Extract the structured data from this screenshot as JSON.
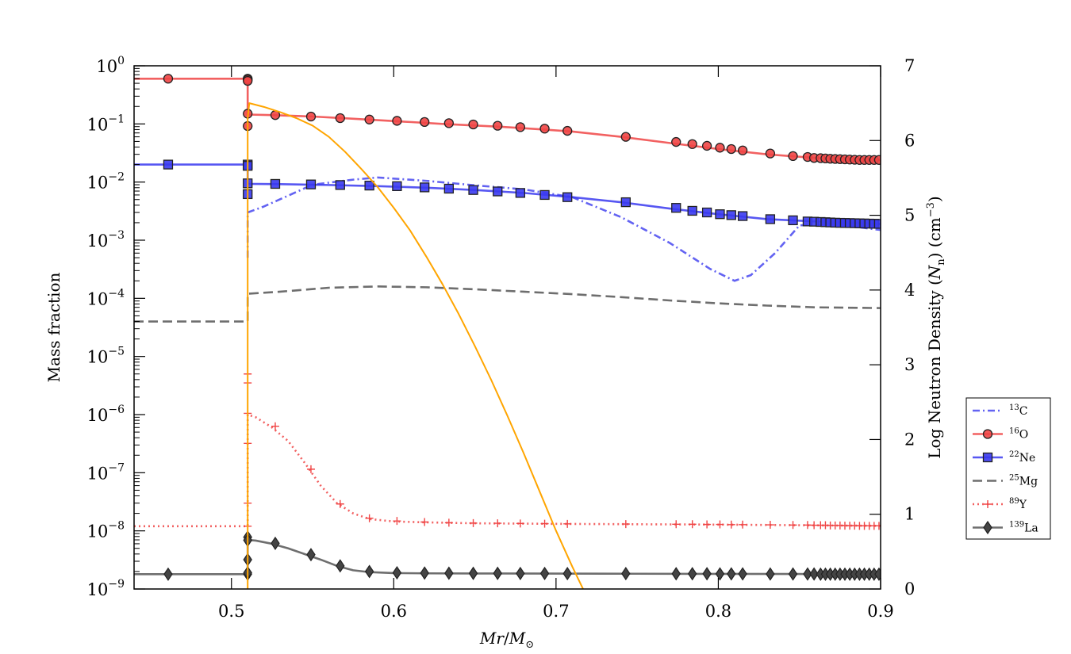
{
  "chart_data": {
    "type": "line",
    "x_axis": {
      "label_main": "Mr",
      "label_sep": "/",
      "label_sym": "M",
      "label_sub": "⊙",
      "range": [
        0.44,
        0.9
      ],
      "ticks": [
        0.5,
        0.6,
        0.7,
        0.8,
        0.9
      ],
      "tick_labels": [
        "0.5",
        "0.6",
        "0.7",
        "0.8",
        "0.9"
      ]
    },
    "y_left": {
      "label": "Mass fraction",
      "scale": "log",
      "range": [
        1e-09,
        1
      ],
      "ticks": [
        -9,
        -8,
        -7,
        -6,
        -5,
        -4,
        -3,
        -2,
        -1,
        0
      ],
      "tick_labels": [
        {
          "base": "10",
          "exp": "−9"
        },
        {
          "base": "10",
          "exp": "−8"
        },
        {
          "base": "10",
          "exp": "−7"
        },
        {
          "base": "10",
          "exp": "−6"
        },
        {
          "base": "10",
          "exp": "−5"
        },
        {
          "base": "10",
          "exp": "−4"
        },
        {
          "base": "10",
          "exp": "−3"
        },
        {
          "base": "10",
          "exp": "−2"
        },
        {
          "base": "10",
          "exp": "−1"
        },
        {
          "base": "10",
          "exp": "0"
        }
      ]
    },
    "y_right": {
      "label_pre": "Log Neutron Density (",
      "label_N": "N",
      "label_Nsub": "n",
      "label_post": ") (cm",
      "label_exp": "−3",
      "label_end": ")",
      "range": [
        0,
        7
      ],
      "ticks": [
        0,
        1,
        2,
        3,
        4,
        5,
        6,
        7
      ],
      "tick_labels": [
        "0",
        "1",
        "2",
        "3",
        "4",
        "5",
        "6",
        "7"
      ]
    },
    "series": [
      {
        "name": "13C",
        "mass": "13",
        "element": "C",
        "axis": "left",
        "color": "#4848f0",
        "dash": "dashdot",
        "marker": "none",
        "x": [
          0.51,
          0.51,
          0.52,
          0.55,
          0.575,
          0.59,
          0.62,
          0.65,
          0.68,
          0.71,
          0.74,
          0.77,
          0.795,
          0.81,
          0.82,
          0.835,
          0.85,
          0.87,
          0.9
        ],
        "y": [
          0.0005,
          0.003,
          0.0038,
          0.009,
          0.011,
          0.012,
          0.0105,
          0.0088,
          0.0075,
          0.0055,
          0.0025,
          0.0009,
          0.00032,
          0.0002,
          0.00025,
          0.0006,
          0.0018,
          0.0019,
          0.0015
        ]
      },
      {
        "name": "16O",
        "mass": "16",
        "element": "O",
        "axis": "left",
        "color": "#f04545",
        "dash": "solid",
        "marker": "circle",
        "x": [
          0.44,
          0.51,
          0.51,
          0.525,
          0.55,
          0.57,
          0.59,
          0.61,
          0.63,
          0.65,
          0.67,
          0.69,
          0.71,
          0.74,
          0.77,
          0.8,
          0.83,
          0.86,
          0.9
        ],
        "y": [
          0.6,
          0.6,
          0.145,
          0.142,
          0.134,
          0.125,
          0.116,
          0.108,
          0.1,
          0.094,
          0.088,
          0.081,
          0.074,
          0.06,
          0.047,
          0.037,
          0.03,
          0.026,
          0.024
        ],
        "mx": [
          0.461,
          0.51,
          0.51,
          0.51,
          0.51,
          0.51,
          0.527,
          0.549,
          0.567,
          0.585,
          0.602,
          0.619,
          0.634,
          0.649,
          0.664,
          0.678,
          0.693,
          0.707,
          0.743,
          0.774,
          0.784,
          0.793,
          0.801,
          0.808,
          0.815,
          0.832,
          0.846,
          0.855,
          0.859,
          0.863,
          0.866,
          0.869,
          0.872,
          0.875,
          0.878,
          0.881,
          0.884,
          0.887,
          0.89,
          0.893,
          0.896,
          0.899
        ],
        "my": [
          0.6,
          0.6,
          0.58,
          0.55,
          0.15,
          0.092,
          0.142,
          0.134,
          0.126,
          0.119,
          0.113,
          0.108,
          0.103,
          0.098,
          0.093,
          0.088,
          0.083,
          0.076,
          0.06,
          0.049,
          0.045,
          0.042,
          0.039,
          0.037,
          0.035,
          0.031,
          0.028,
          0.027,
          0.026,
          0.0258,
          0.0255,
          0.0252,
          0.025,
          0.0248,
          0.0246,
          0.0244,
          0.0242,
          0.024,
          0.024,
          0.024,
          0.024,
          0.024
        ]
      },
      {
        "name": "22Ne",
        "mass": "22",
        "element": "Ne",
        "axis": "left",
        "color": "#3a3af0",
        "dash": "solid",
        "marker": "square",
        "x": [
          0.44,
          0.51,
          0.51,
          0.53,
          0.56,
          0.59,
          0.62,
          0.65,
          0.68,
          0.71,
          0.74,
          0.77,
          0.8,
          0.83,
          0.86,
          0.9
        ],
        "y": [
          0.02,
          0.02,
          0.0093,
          0.0092,
          0.0089,
          0.0085,
          0.008,
          0.0073,
          0.0065,
          0.0055,
          0.0045,
          0.0035,
          0.0028,
          0.0023,
          0.0021,
          0.0019
        ],
        "mx": [
          0.461,
          0.51,
          0.51,
          0.51,
          0.51,
          0.527,
          0.549,
          0.567,
          0.585,
          0.602,
          0.619,
          0.634,
          0.649,
          0.664,
          0.678,
          0.693,
          0.707,
          0.743,
          0.774,
          0.784,
          0.793,
          0.801,
          0.808,
          0.815,
          0.832,
          0.846,
          0.855,
          0.859,
          0.863,
          0.866,
          0.869,
          0.872,
          0.875,
          0.878,
          0.881,
          0.884,
          0.887,
          0.89,
          0.893,
          0.896,
          0.899
        ],
        "my": [
          0.02,
          0.02,
          0.019,
          0.0095,
          0.0062,
          0.0093,
          0.0091,
          0.0089,
          0.0087,
          0.0085,
          0.0081,
          0.0077,
          0.0073,
          0.0069,
          0.0065,
          0.006,
          0.0055,
          0.0045,
          0.0036,
          0.0032,
          0.003,
          0.0028,
          0.0027,
          0.0026,
          0.0023,
          0.0022,
          0.0021,
          0.00208,
          0.00206,
          0.00204,
          0.00202,
          0.002,
          0.00199,
          0.00198,
          0.00197,
          0.00196,
          0.00195,
          0.00194,
          0.00193,
          0.00192,
          0.00191
        ]
      },
      {
        "name": "25Mg",
        "mass": "25",
        "element": "Mg",
        "axis": "left",
        "color": "#555555",
        "dash": "dashed",
        "marker": "none",
        "x": [
          0.44,
          0.51,
          0.51,
          0.53,
          0.56,
          0.59,
          0.62,
          0.65,
          0.68,
          0.71,
          0.74,
          0.77,
          0.8,
          0.83,
          0.86,
          0.9
        ],
        "y": [
          4e-05,
          4e-05,
          0.00012,
          0.00013,
          0.000152,
          0.00016,
          0.000155,
          0.000143,
          0.00013,
          0.000118,
          0.000105,
          9.2e-05,
          8.2e-05,
          7.5e-05,
          7e-05,
          6.8e-05
        ]
      },
      {
        "name": "89Y",
        "mass": "89",
        "element": "Y",
        "axis": "left",
        "color": "#f04545",
        "dash": "dotted",
        "marker": "plus",
        "x": [
          0.44,
          0.51,
          0.51,
          0.515,
          0.525,
          0.535,
          0.545,
          0.555,
          0.565,
          0.575,
          0.585,
          0.6,
          0.62,
          0.65,
          0.7,
          0.75,
          0.8,
          0.85,
          0.9
        ],
        "y": [
          1.2e-08,
          1.2e-08,
          1e-06,
          9e-07,
          6e-07,
          3.5e-07,
          1.5e-07,
          6e-08,
          3e-08,
          2e-08,
          1.6e-08,
          1.45e-08,
          1.4e-08,
          1.35e-08,
          1.32e-08,
          1.3e-08,
          1.28e-08,
          1.25e-08,
          1.22e-08
        ],
        "mx": [
          0.51,
          0.51,
          0.51,
          0.51,
          0.51,
          0.51,
          0.527,
          0.549,
          0.567,
          0.585,
          0.602,
          0.619,
          0.634,
          0.649,
          0.664,
          0.678,
          0.693,
          0.707,
          0.743,
          0.774,
          0.784,
          0.793,
          0.801,
          0.808,
          0.815,
          0.832,
          0.846,
          0.855,
          0.859,
          0.863,
          0.866,
          0.869,
          0.872,
          0.875,
          0.878,
          0.881,
          0.884,
          0.887,
          0.89,
          0.893,
          0.896,
          0.899
        ],
        "my": [
          1.2e-08,
          3e-08,
          3.2e-07,
          3.5e-06,
          1.05e-06,
          5e-06,
          6.3e-07,
          1.15e-07,
          2.9e-08,
          1.65e-08,
          1.48e-08,
          1.42e-08,
          1.38e-08,
          1.36e-08,
          1.35e-08,
          1.34e-08,
          1.33e-08,
          1.32e-08,
          1.31e-08,
          1.3e-08,
          1.3e-08,
          1.29e-08,
          1.29e-08,
          1.28e-08,
          1.28e-08,
          1.27e-08,
          1.26e-08,
          1.26e-08,
          1.25e-08,
          1.25e-08,
          1.25e-08,
          1.24e-08,
          1.24e-08,
          1.24e-08,
          1.23e-08,
          1.23e-08,
          1.23e-08,
          1.22e-08,
          1.22e-08,
          1.22e-08,
          1.22e-08,
          1.22e-08
        ]
      },
      {
        "name": "139La",
        "mass": "139",
        "element": "La",
        "axis": "left",
        "color": "#555555",
        "dash": "solid",
        "marker": "diamond",
        "x": [
          0.44,
          0.51,
          0.51,
          0.515,
          0.525,
          0.535,
          0.545,
          0.555,
          0.565,
          0.575,
          0.585,
          0.6,
          0.62,
          0.65,
          0.7,
          0.75,
          0.8,
          0.85,
          0.9
        ],
        "y": [
          1.8e-09,
          1.8e-09,
          7e-09,
          6.8e-09,
          6e-09,
          5e-09,
          4e-09,
          3.2e-09,
          2.5e-09,
          2.1e-09,
          1.95e-09,
          1.88e-09,
          1.86e-09,
          1.85e-09,
          1.84e-09,
          1.83e-09,
          1.82e-09,
          1.81e-09,
          1.8e-09
        ],
        "mx": [
          0.461,
          0.51,
          0.51,
          0.51,
          0.51,
          0.51,
          0.527,
          0.549,
          0.567,
          0.585,
          0.602,
          0.619,
          0.634,
          0.649,
          0.664,
          0.678,
          0.693,
          0.707,
          0.743,
          0.774,
          0.784,
          0.793,
          0.801,
          0.808,
          0.815,
          0.832,
          0.846,
          0.855,
          0.859,
          0.863,
          0.866,
          0.869,
          0.872,
          0.875,
          0.878,
          0.881,
          0.884,
          0.887,
          0.89,
          0.893,
          0.896,
          0.899
        ],
        "my": [
          1.8e-09,
          1.8e-09,
          3.2e-09,
          7.8e-09,
          1.9e-09,
          6.9e-09,
          6.1e-09,
          3.9e-09,
          2.5e-09,
          2e-09,
          1.9e-09,
          1.88e-09,
          1.87e-09,
          1.86e-09,
          1.86e-09,
          1.85e-09,
          1.85e-09,
          1.84e-09,
          1.84e-09,
          1.83e-09,
          1.83e-09,
          1.83e-09,
          1.82e-09,
          1.82e-09,
          1.82e-09,
          1.81e-09,
          1.81e-09,
          1.81e-09,
          1.81e-09,
          1.8e-09,
          1.8e-09,
          1.8e-09,
          1.8e-09,
          1.8e-09,
          1.8e-09,
          1.8e-09,
          1.8e-09,
          1.8e-09,
          1.8e-09,
          1.8e-09,
          1.8e-09,
          1.8e-09
        ]
      },
      {
        "name": "Log Neutron Density",
        "axis": "right",
        "color": "#ffa500",
        "dash": "solid",
        "marker": "none",
        "in_legend": false,
        "x": [
          0.51,
          0.51,
          0.511,
          0.52,
          0.53,
          0.54,
          0.55,
          0.56,
          0.57,
          0.58,
          0.59,
          0.6,
          0.61,
          0.62,
          0.63,
          0.64,
          0.65,
          0.66,
          0.67,
          0.68,
          0.69,
          0.7,
          0.71,
          0.72,
          0.727
        ],
        "y": [
          0,
          6.3,
          6.5,
          6.45,
          6.38,
          6.3,
          6.2,
          6.05,
          5.85,
          5.62,
          5.38,
          5.1,
          4.8,
          4.45,
          4.08,
          3.68,
          3.25,
          2.8,
          2.32,
          1.82,
          1.3,
          0.78,
          0.3,
          -0.15,
          -0.45
        ]
      }
    ],
    "legend": {
      "position": "outside-right"
    }
  }
}
